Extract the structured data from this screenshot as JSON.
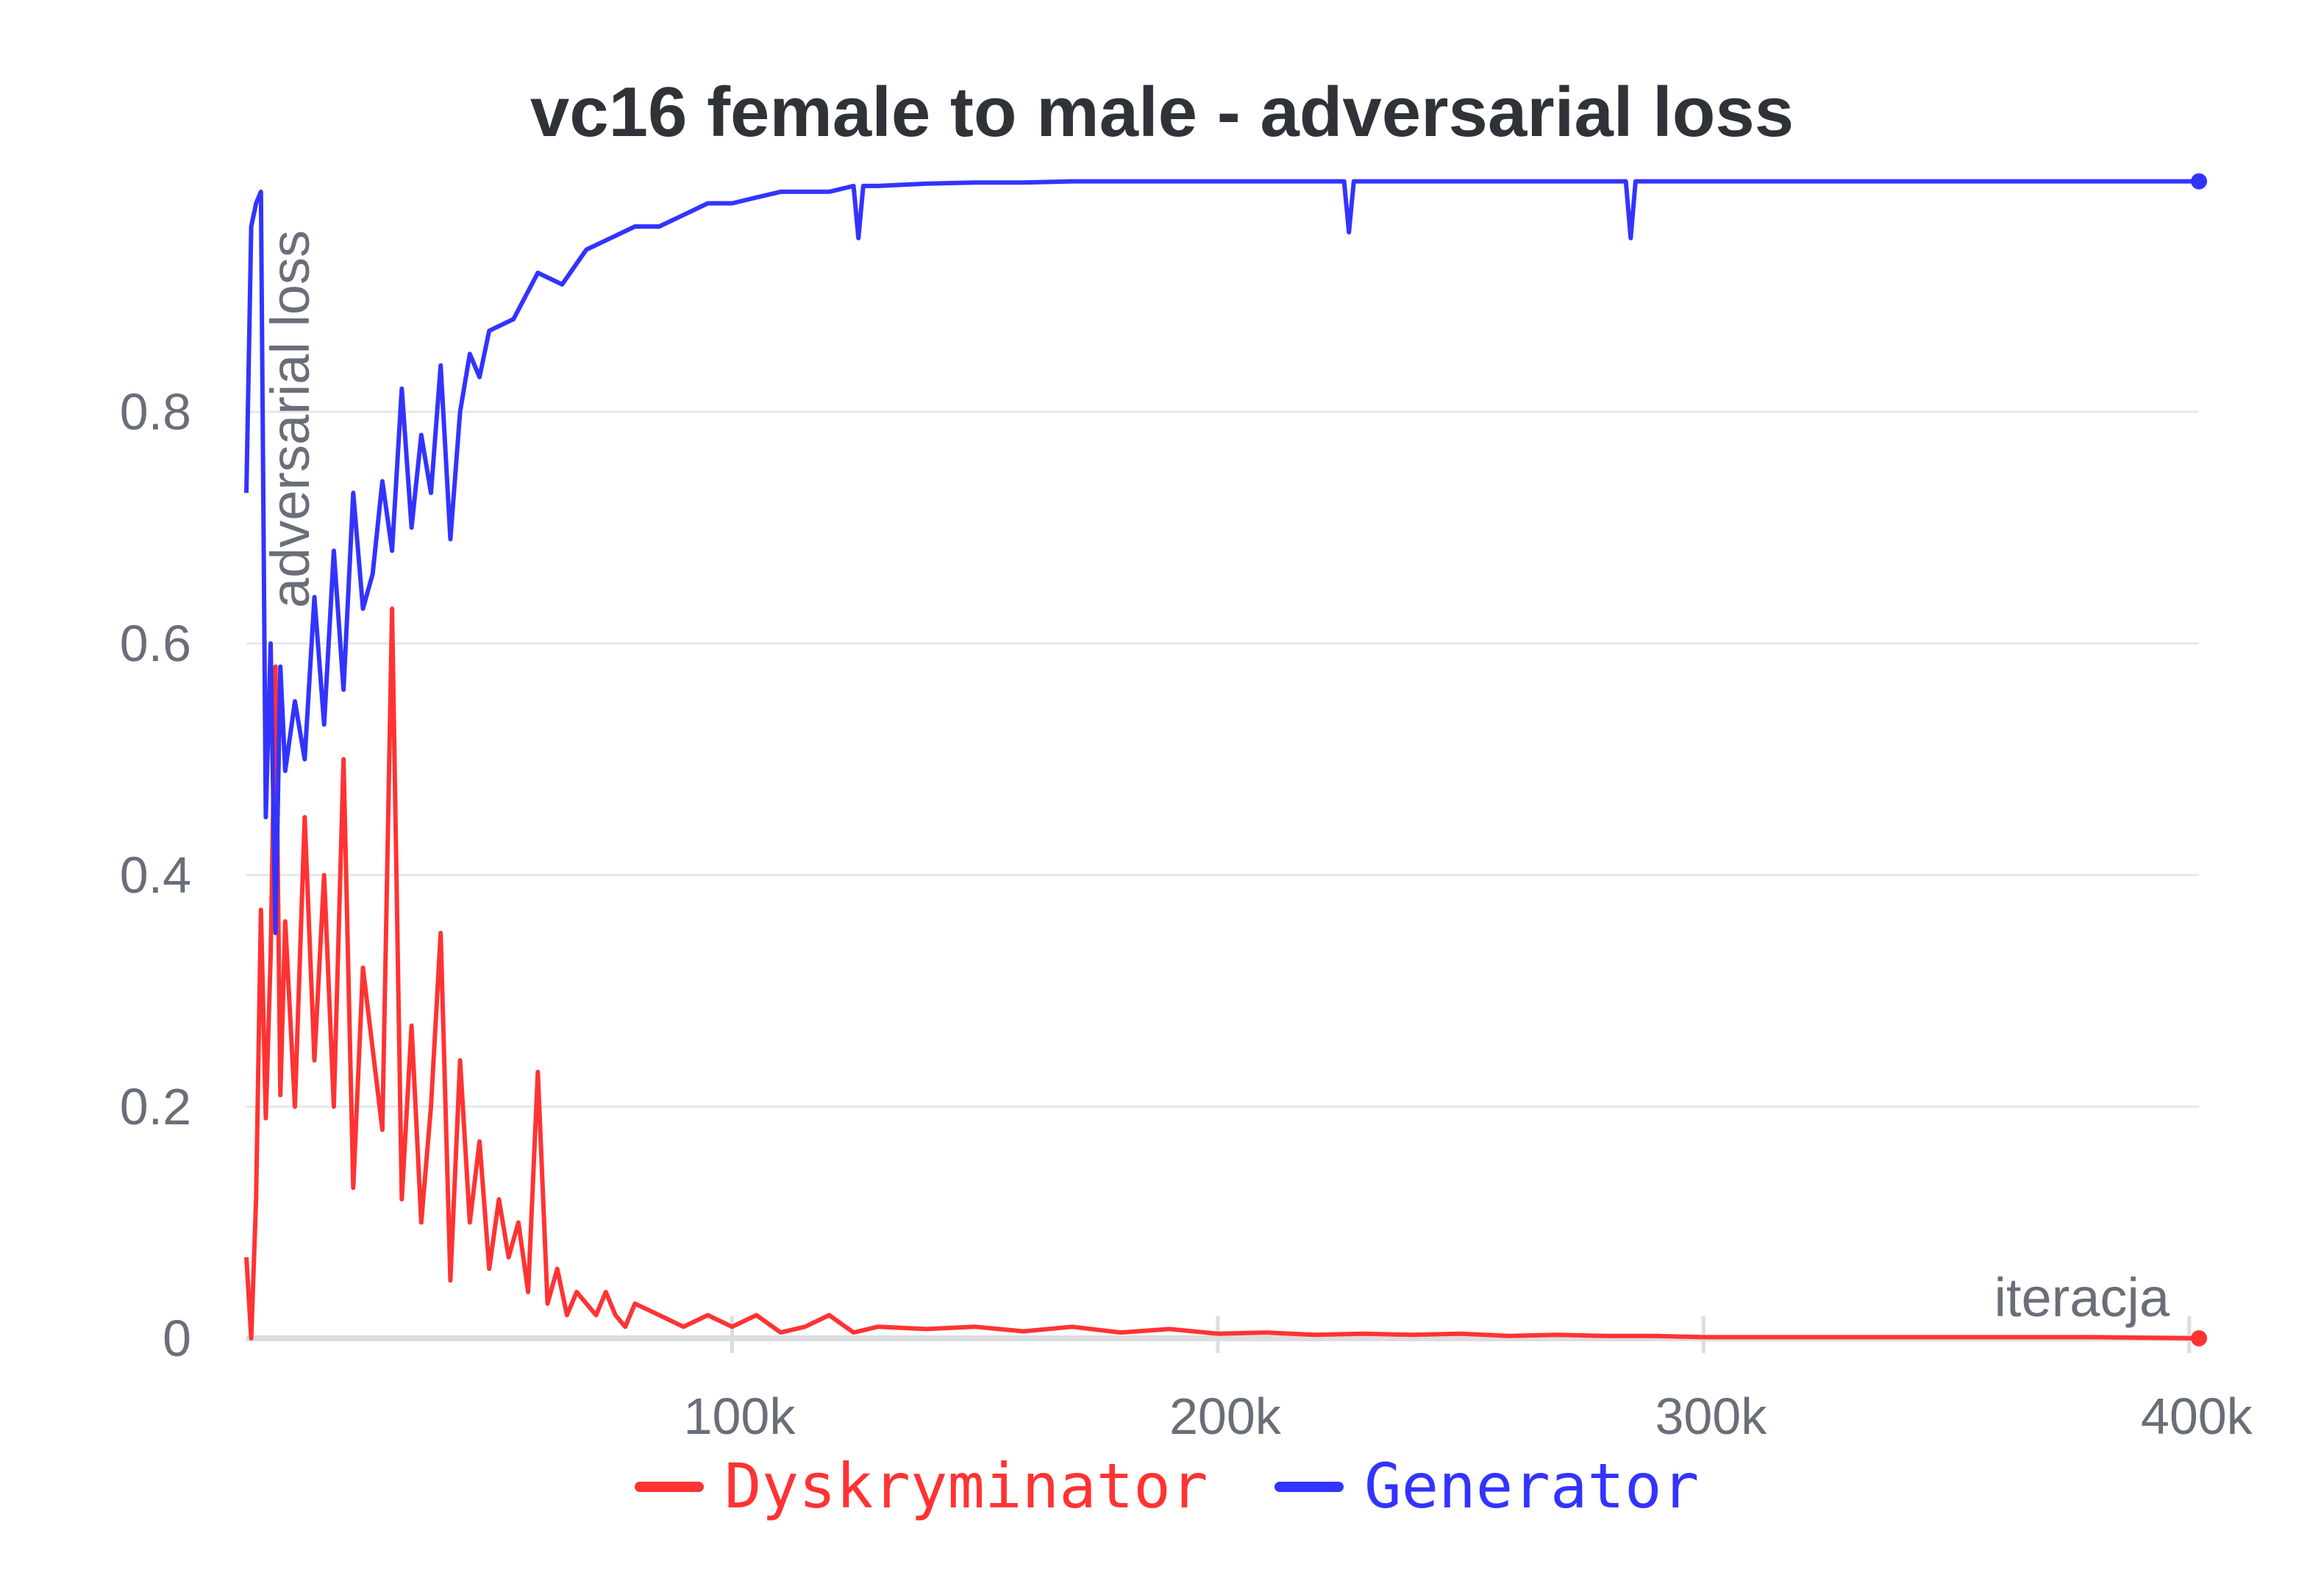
{
  "chart_data": {
    "type": "line",
    "title": "vc16 female to male - adversarial loss",
    "xlabel": "iteracja",
    "ylabel": "adversarial loss",
    "xlim": [
      0,
      402000
    ],
    "ylim": [
      0,
      1.0
    ],
    "x_ticks": [
      100000,
      200000,
      300000,
      400000
    ],
    "x_tick_labels": [
      "100k",
      "200k",
      "300k",
      "400k"
    ],
    "y_ticks": [
      0,
      0.2,
      0.4,
      0.6,
      0.8
    ],
    "y_tick_labels": [
      "0",
      "0.2",
      "0.4",
      "0.6",
      "0.8"
    ],
    "grid": true,
    "legend_position": "bottom",
    "series": [
      {
        "name": "Dyskryminator",
        "color": "#ff3333",
        "x": [
          0,
          1000,
          2000,
          3000,
          4000,
          5000,
          6000,
          7000,
          8000,
          10000,
          12000,
          14000,
          16000,
          18000,
          20000,
          22000,
          24000,
          26000,
          28000,
          30000,
          32000,
          34000,
          36000,
          38000,
          40000,
          42000,
          44000,
          46000,
          48000,
          50000,
          52000,
          54000,
          56000,
          58000,
          60000,
          62000,
          64000,
          66000,
          68000,
          70000,
          72000,
          74000,
          76000,
          78000,
          80000,
          85000,
          90000,
          95000,
          100000,
          105000,
          110000,
          115000,
          120000,
          125000,
          130000,
          140000,
          150000,
          160000,
          170000,
          180000,
          190000,
          200000,
          210000,
          220000,
          230000,
          240000,
          250000,
          260000,
          270000,
          280000,
          290000,
          300000,
          320000,
          340000,
          360000,
          380000,
          402000
        ],
        "y": [
          0.07,
          0.0,
          0.12,
          0.37,
          0.19,
          0.33,
          0.58,
          0.21,
          0.36,
          0.2,
          0.45,
          0.24,
          0.4,
          0.2,
          0.5,
          0.13,
          0.32,
          0.25,
          0.18,
          0.63,
          0.12,
          0.27,
          0.1,
          0.2,
          0.35,
          0.05,
          0.24,
          0.1,
          0.17,
          0.06,
          0.12,
          0.07,
          0.1,
          0.04,
          0.23,
          0.03,
          0.06,
          0.02,
          0.04,
          0.03,
          0.02,
          0.04,
          0.02,
          0.01,
          0.03,
          0.02,
          0.01,
          0.02,
          0.01,
          0.02,
          0.005,
          0.01,
          0.02,
          0.005,
          0.01,
          0.008,
          0.01,
          0.006,
          0.01,
          0.005,
          0.008,
          0.004,
          0.005,
          0.003,
          0.004,
          0.003,
          0.004,
          0.002,
          0.003,
          0.002,
          0.002,
          0.001,
          0.001,
          0.001,
          0.001,
          0.001,
          0.0
        ]
      },
      {
        "name": "Generator",
        "color": "#3333ff",
        "x": [
          0,
          1000,
          2000,
          3000,
          4000,
          5000,
          6000,
          7000,
          8000,
          10000,
          12000,
          14000,
          16000,
          18000,
          20000,
          22000,
          24000,
          26000,
          28000,
          30000,
          32000,
          34000,
          36000,
          38000,
          40000,
          42000,
          44000,
          46000,
          48000,
          50000,
          55000,
          60000,
          65000,
          70000,
          75000,
          80000,
          85000,
          90000,
          95000,
          100000,
          105000,
          110000,
          115000,
          120000,
          125000,
          126000,
          127000,
          130000,
          140000,
          150000,
          160000,
          170000,
          180000,
          190000,
          200000,
          210000,
          220000,
          226000,
          227000,
          228000,
          240000,
          260000,
          280000,
          284000,
          285000,
          286000,
          300000,
          320000,
          340000,
          360000,
          380000,
          402000
        ],
        "y": [
          0.73,
          0.96,
          0.98,
          0.99,
          0.45,
          0.6,
          0.35,
          0.58,
          0.49,
          0.55,
          0.5,
          0.64,
          0.53,
          0.68,
          0.56,
          0.73,
          0.63,
          0.66,
          0.74,
          0.68,
          0.82,
          0.7,
          0.78,
          0.73,
          0.84,
          0.69,
          0.8,
          0.85,
          0.83,
          0.87,
          0.88,
          0.92,
          0.91,
          0.94,
          0.95,
          0.96,
          0.96,
          0.97,
          0.98,
          0.98,
          0.985,
          0.99,
          0.99,
          0.99,
          0.995,
          0.95,
          0.995,
          0.995,
          0.997,
          0.998,
          0.998,
          0.999,
          0.999,
          0.999,
          0.999,
          0.999,
          0.999,
          0.999,
          0.955,
          0.999,
          0.999,
          0.999,
          0.999,
          0.999,
          0.95,
          0.999,
          0.999,
          0.999,
          0.999,
          0.999,
          0.999,
          0.999
        ]
      }
    ]
  }
}
